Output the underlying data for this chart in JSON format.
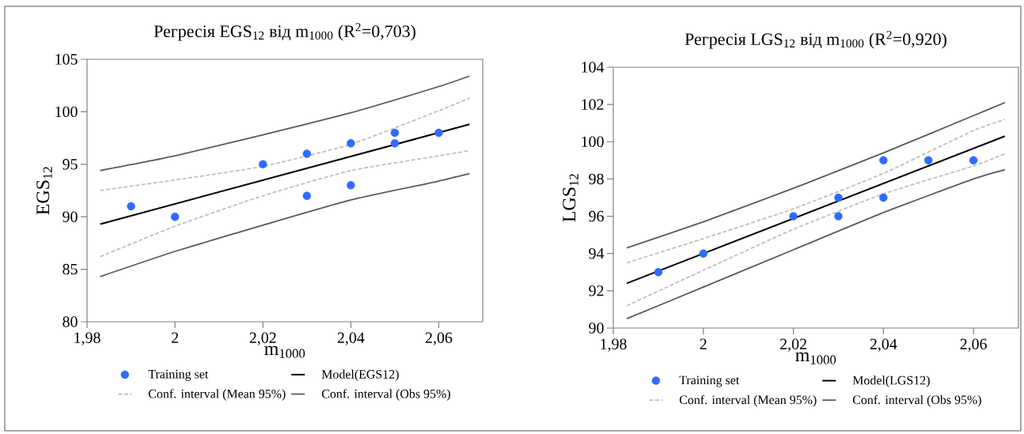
{
  "chart_data": [
    {
      "type": "scatter",
      "title": "Регресія EGS$_{12}$ від m$_{1000}$ (R$^{2}$=0,703)",
      "xlabel": "m$_{1000}$",
      "ylabel": "EGS$_{12}$",
      "xlim": [
        1.98,
        2.07
      ],
      "xticks": [
        {
          "value": 1.98,
          "label": "1,98"
        },
        2,
        {
          "value": 2.02,
          "label": "2,02"
        },
        {
          "value": 2.04,
          "label": "2,04"
        },
        {
          "value": 2.06,
          "label": "2,06"
        }
      ],
      "ylim": [
        80,
        105
      ],
      "yticks": [
        80,
        85,
        90,
        95,
        100,
        105
      ],
      "legend": "bottom",
      "series": [
        {
          "name": "Training set",
          "marker": "circle",
          "color": "#2f6bff",
          "x": [
            1.99,
            2.0,
            2.02,
            2.03,
            2.03,
            2.04,
            2.04,
            2.05,
            2.05,
            2.06
          ],
          "values": [
            91,
            90,
            95,
            96,
            92,
            97,
            93,
            98,
            97,
            98
          ]
        },
        {
          "name": "Model(EGS12)",
          "type": "line",
          "line_style": "solid",
          "color": "#000000",
          "x": [
            1.983,
            2.067
          ],
          "values": [
            89.3,
            98.8
          ]
        },
        {
          "name": "Conf. interval (Mean 95%)",
          "type": "line",
          "line_style": "dashed",
          "color": "#bfbfbf",
          "x": [
            1.983,
            2.0,
            2.02,
            2.04,
            2.06,
            2.067
          ],
          "values": [
            92.5,
            93.5,
            94.8,
            96.9,
            100.1,
            101.3
          ]
        },
        {
          "type": "line",
          "line_style": "dashed",
          "color": "#bfbfbf",
          "x": [
            1.983,
            2.0,
            2.02,
            2.04,
            2.06,
            2.067
          ],
          "values": [
            86.2,
            89.1,
            92.0,
            94.4,
            95.8,
            96.3
          ]
        },
        {
          "name": "Conf. interval (Obs 95%)",
          "type": "line",
          "line_style": "solid",
          "color": "#595959",
          "x": [
            1.983,
            2.0,
            2.02,
            2.04,
            2.06,
            2.067
          ],
          "values": [
            94.4,
            95.8,
            97.8,
            99.9,
            102.4,
            103.4
          ]
        },
        {
          "type": "line",
          "line_style": "solid",
          "color": "#595959",
          "x": [
            1.983,
            2.0,
            2.02,
            2.04,
            2.06,
            2.067
          ],
          "values": [
            84.3,
            86.7,
            89.2,
            91.6,
            93.4,
            94.1
          ]
        }
      ]
    },
    {
      "type": "scatter",
      "title": "Регресія LGS$_{12}$ від m$_{1000}$ (R$^{2}$=0,920)",
      "xlabel": "m$_{1000}$",
      "ylabel": "LGS$_{12}$",
      "xlim": [
        1.98,
        2.07
      ],
      "xticks": [
        {
          "value": 1.98,
          "label": "1,98"
        },
        2,
        {
          "value": 2.02,
          "label": "2,02"
        },
        {
          "value": 2.04,
          "label": "2,04"
        },
        {
          "value": 2.06,
          "label": "2,06"
        }
      ],
      "ylim": [
        90,
        104
      ],
      "yticks": [
        90,
        92,
        94,
        96,
        98,
        100,
        102,
        104
      ],
      "legend": "bottom",
      "series": [
        {
          "name": "Training set",
          "marker": "circle",
          "color": "#2f6bff",
          "x": [
            1.99,
            2.0,
            2.02,
            2.03,
            2.03,
            2.04,
            2.04,
            2.05,
            2.06
          ],
          "values": [
            93,
            94,
            96,
            97,
            96,
            99,
            97,
            99,
            99
          ]
        },
        {
          "name": "Model(LGS12)",
          "type": "line",
          "line_style": "solid",
          "color": "#000000",
          "x": [
            1.983,
            2.067
          ],
          "values": [
            92.4,
            100.3
          ]
        },
        {
          "name": "Conf. interval (Mean 95%)",
          "type": "line",
          "line_style": "dashed",
          "color": "#bfbfbf",
          "x": [
            1.983,
            2.0,
            2.02,
            2.04,
            2.06,
            2.067
          ],
          "values": [
            93.5,
            94.8,
            96.4,
            98.3,
            100.6,
            101.2
          ]
        },
        {
          "type": "line",
          "line_style": "dashed",
          "color": "#bfbfbf",
          "x": [
            1.983,
            2.0,
            2.02,
            2.04,
            2.06,
            2.067
          ],
          "values": [
            91.2,
            93.1,
            95.3,
            97.2,
            98.7,
            99.35
          ]
        },
        {
          "name": "Conf. interval (Obs 95%)",
          "type": "line",
          "line_style": "solid",
          "color": "#595959",
          "x": [
            1.983,
            2.0,
            2.02,
            2.04,
            2.06,
            2.067
          ],
          "values": [
            94.3,
            95.7,
            97.5,
            99.4,
            101.4,
            102.1
          ]
        },
        {
          "type": "line",
          "line_style": "solid",
          "color": "#595959",
          "x": [
            1.983,
            2.0,
            2.02,
            2.04,
            2.06,
            2.067
          ],
          "values": [
            90.5,
            92.2,
            94.2,
            96.2,
            98.0,
            98.5
          ]
        }
      ]
    }
  ]
}
